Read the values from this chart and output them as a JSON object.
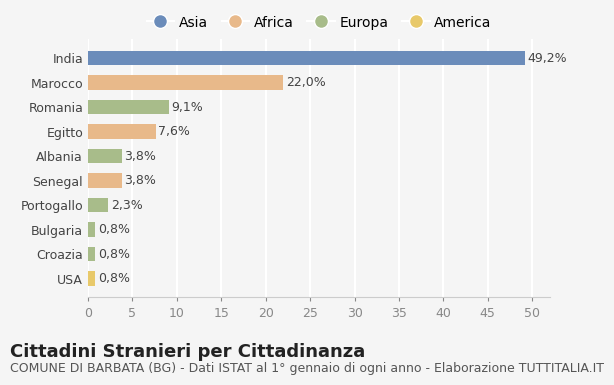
{
  "categories": [
    "India",
    "Marocco",
    "Romania",
    "Egitto",
    "Albania",
    "Senegal",
    "Portogallo",
    "Bulgaria",
    "Croazia",
    "USA"
  ],
  "values": [
    49.2,
    22.0,
    9.1,
    7.6,
    3.8,
    3.8,
    2.3,
    0.8,
    0.8,
    0.8
  ],
  "labels": [
    "49,2%",
    "22,0%",
    "9,1%",
    "7,6%",
    "3,8%",
    "3,8%",
    "2,3%",
    "0,8%",
    "0,8%",
    "0,8%"
  ],
  "colors": [
    "#6b8cba",
    "#e8b98a",
    "#a8bc8a",
    "#e8b98a",
    "#a8bc8a",
    "#e8b98a",
    "#a8bc8a",
    "#a8bc8a",
    "#a8bc8a",
    "#e8c96a"
  ],
  "continent": [
    "Asia",
    "Africa",
    "Europa",
    "Africa",
    "Europa",
    "Africa",
    "Europa",
    "Europa",
    "Europa",
    "America"
  ],
  "legend_labels": [
    "Asia",
    "Africa",
    "Europa",
    "America"
  ],
  "legend_colors": [
    "#6b8cba",
    "#e8b98a",
    "#a8bc8a",
    "#e8c96a"
  ],
  "title": "Cittadini Stranieri per Cittadinanza",
  "subtitle": "COMUNE DI BARBATA (BG) - Dati ISTAT al 1° gennaio di ogni anno - Elaborazione TUTTITALIA.IT",
  "xlabel_ticks": [
    0,
    5,
    10,
    15,
    20,
    25,
    30,
    35,
    40,
    45,
    50
  ],
  "xlim": [
    0,
    52
  ],
  "background_color": "#f5f5f5",
  "grid_color": "#ffffff",
  "bar_height": 0.6,
  "title_fontsize": 13,
  "subtitle_fontsize": 9,
  "label_fontsize": 9,
  "tick_fontsize": 9,
  "legend_fontsize": 10
}
